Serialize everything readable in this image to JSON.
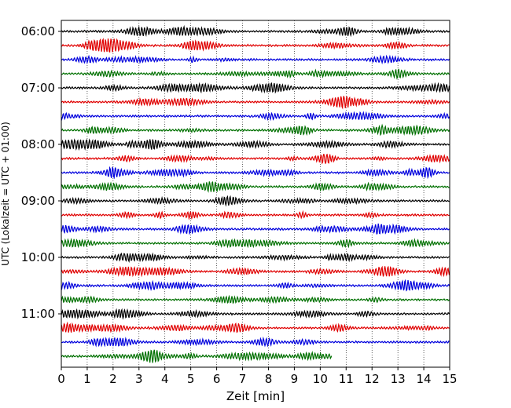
{
  "chart_data": {
    "type": "line",
    "title": "",
    "xlabel": "Zeit  [min]",
    "ylabel": "UTC (Lokalzeit = UTC + 01:00)",
    "xlim": [
      0,
      15
    ],
    "x_ticks": [
      "0",
      "1",
      "2",
      "3",
      "4",
      "5",
      "6",
      "7",
      "8",
      "9",
      "10",
      "11",
      "12",
      "13",
      "14",
      "15"
    ],
    "y_ticks": [
      "06:00",
      "07:00",
      "08:00",
      "09:00",
      "10:00",
      "11:00"
    ],
    "grid": "vertical dotted",
    "trace_colors": [
      "#000000",
      "#e00000",
      "#0000dd",
      "#007000"
    ],
    "trace_count": 24,
    "minutes_per_trace": 15,
    "last_trace_end_min": 10.45
  }
}
